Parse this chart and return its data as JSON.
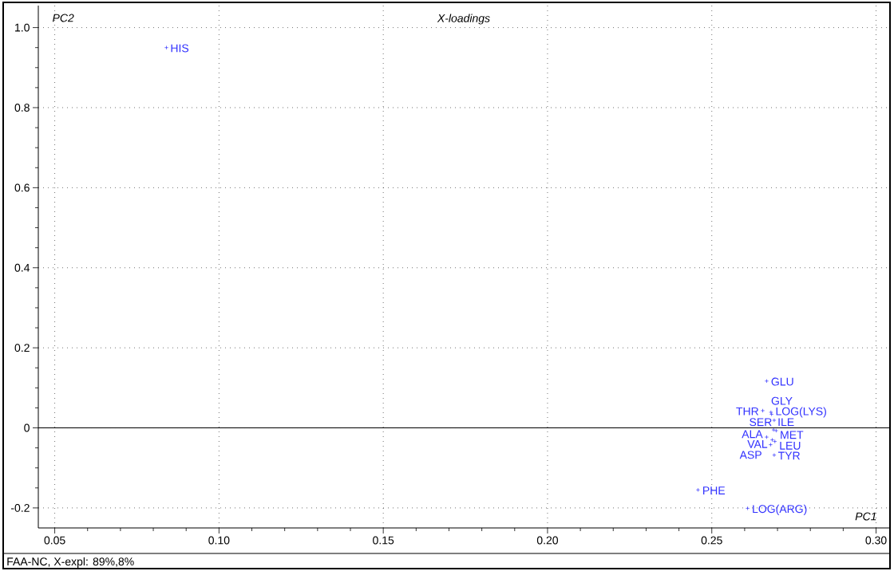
{
  "chart_data": {
    "type": "scatter",
    "title": "X-loadings",
    "xlabel": "PC1",
    "ylabel": "PC2",
    "annotations": [
      "FAA-NC, X-expl: 89%,8%"
    ],
    "xlim": [
      0.045,
      0.304
    ],
    "ylim": [
      -0.25,
      1.055
    ],
    "xticks": [
      0.05,
      {
        "value": 0.1,
        "label": "0.10"
      },
      0.15,
      {
        "value": 0.2,
        "label": "0.20"
      },
      0.25,
      {
        "value": 0.3,
        "label": "0.30"
      }
    ],
    "yticks": [
      -0.2,
      0,
      0.2,
      0.4,
      0.6,
      0.8,
      {
        "value": 1.0,
        "label": "1.0"
      }
    ],
    "grid": true,
    "marker": "cross",
    "ref_lines": [
      {
        "axis": "y",
        "value": 0,
        "color": "#000000"
      }
    ],
    "series": [
      {
        "name": "HIS",
        "color": "#3333ff",
        "x": [
          0.084
        ],
        "values": [
          0.95
        ]
      },
      {
        "name": "GLU",
        "color": "#3333ff",
        "x": [
          0.2667
        ],
        "values": [
          0.117
        ]
      },
      {
        "name": "THR",
        "color": "#3333ff",
        "x": [
          0.2655
        ],
        "values": [
          0.043
        ]
      },
      {
        "name": "GLY",
        "color": "#3333ff",
        "x": [
          0.268
        ],
        "values": [
          0.039
        ]
      },
      {
        "name": "LOG(LYS)",
        "color": "#3333ff",
        "x": [
          0.2682
        ],
        "values": [
          0.034
        ]
      },
      {
        "name": "ILE",
        "color": "#3333ff",
        "x": [
          0.269
        ],
        "values": [
          0.019
        ]
      },
      {
        "name": "SER",
        "color": "#3333ff",
        "x": [
          0.2688
        ],
        "values": [
          -0.005
        ]
      },
      {
        "name": "MET",
        "color": "#3333ff",
        "x": [
          0.2696
        ],
        "values": [
          -0.007
        ]
      },
      {
        "name": "ALA",
        "color": "#3333ff",
        "x": [
          0.2667
        ],
        "values": [
          -0.023
        ]
      },
      {
        "name": "VAL",
        "color": "#3333ff",
        "x": [
          0.2684
        ],
        "values": [
          -0.03
        ]
      },
      {
        "name": "LEU",
        "color": "#3333ff",
        "x": [
          0.2692
        ],
        "values": [
          -0.034
        ]
      },
      {
        "name": "ASP",
        "color": "#3333ff",
        "x": [
          0.2679
        ],
        "values": [
          -0.042
        ]
      },
      {
        "name": "TYR",
        "color": "#3333ff",
        "x": [
          0.269
        ],
        "values": [
          -0.068
        ]
      },
      {
        "name": "PHE",
        "color": "#3333ff",
        "x": [
          0.2458
        ],
        "values": [
          -0.155
        ]
      },
      {
        "name": "LOG(ARG)",
        "color": "#3333ff",
        "x": [
          0.2609
        ],
        "values": [
          -0.201
        ]
      }
    ]
  }
}
